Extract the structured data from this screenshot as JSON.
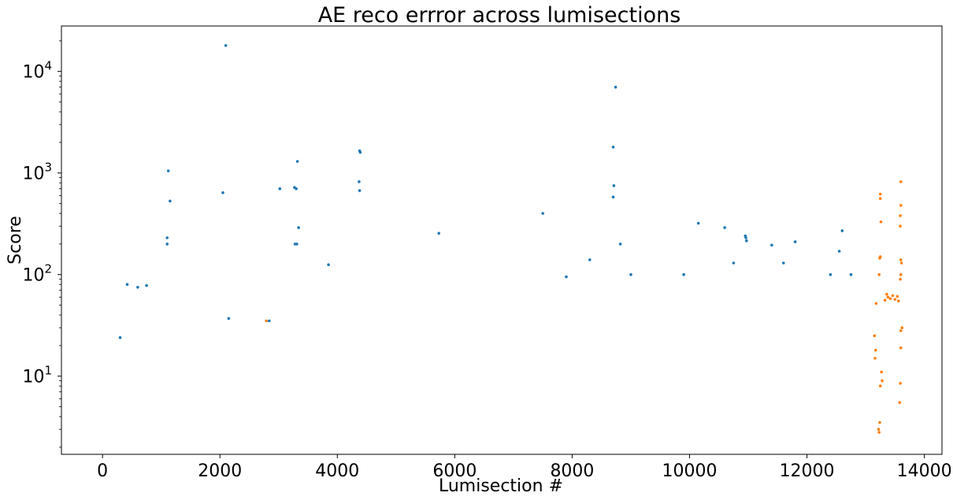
{
  "chart_data": {
    "type": "scatter",
    "title": "AE reco errror across lumisections",
    "xlabel": "Lumisection #",
    "ylabel": "Score",
    "xlim": [
      -700,
      14300
    ],
    "ylim": [
      1.7,
      28000
    ],
    "yscale": "log",
    "grid": false,
    "xticks": [
      0,
      2000,
      4000,
      6000,
      8000,
      10000,
      12000,
      14000
    ],
    "yticks": [
      {
        "value": 10,
        "base": "10",
        "exp": "1"
      },
      {
        "value": 100,
        "base": "10",
        "exp": "2"
      },
      {
        "value": 1000,
        "base": "10",
        "exp": "3"
      },
      {
        "value": 10000,
        "base": "10",
        "exp": "4"
      }
    ],
    "series": [
      {
        "color": "#1f77b4",
        "points": [
          [
            1120,
            1050
          ],
          [
            1150,
            530
          ],
          [
            2050,
            640
          ],
          [
            2100,
            18000
          ],
          [
            2150,
            37
          ],
          [
            3020,
            700
          ],
          [
            3270,
            720
          ],
          [
            3300,
            700
          ],
          [
            3320,
            1300
          ],
          [
            3340,
            290
          ],
          [
            3280,
            200
          ],
          [
            3310,
            200
          ],
          [
            3850,
            125
          ],
          [
            4380,
            1650
          ],
          [
            4390,
            1600
          ],
          [
            4370,
            820
          ],
          [
            4380,
            670
          ],
          [
            5730,
            255
          ],
          [
            7500,
            400
          ],
          [
            8700,
            1800
          ],
          [
            8710,
            750
          ],
          [
            8700,
            580
          ],
          [
            8740,
            7000
          ],
          [
            8820,
            200
          ],
          [
            10150,
            320
          ],
          [
            10600,
            290
          ],
          [
            10950,
            240
          ],
          [
            10960,
            230
          ],
          [
            10970,
            215
          ],
          [
            11400,
            195
          ],
          [
            11800,
            210
          ],
          [
            12600,
            270
          ],
          [
            12550,
            170
          ],
          [
            1100,
            230
          ],
          [
            1100,
            200
          ],
          [
            420,
            80
          ],
          [
            600,
            75
          ],
          [
            750,
            78
          ],
          [
            300,
            24
          ],
          [
            2840,
            35
          ],
          [
            7900,
            95
          ],
          [
            8300,
            140
          ],
          [
            9000,
            100
          ],
          [
            9900,
            100
          ],
          [
            10750,
            130
          ],
          [
            11600,
            130
          ],
          [
            12400,
            100
          ],
          [
            12750,
            100
          ]
        ]
      },
      {
        "color": "#ff7f0e",
        "points": [
          [
            2790,
            35
          ],
          [
            13250,
            620
          ],
          [
            13250,
            560
          ],
          [
            13600,
            820
          ],
          [
            13600,
            480
          ],
          [
            13590,
            380
          ],
          [
            13590,
            300
          ],
          [
            13260,
            330
          ],
          [
            13250,
            150
          ],
          [
            13240,
            145
          ],
          [
            13600,
            140
          ],
          [
            13610,
            130
          ],
          [
            13230,
            100
          ],
          [
            13600,
            100
          ],
          [
            13590,
            90
          ],
          [
            13180,
            52
          ],
          [
            13620,
            30
          ],
          [
            13600,
            28
          ],
          [
            13600,
            19
          ],
          [
            13270,
            11
          ],
          [
            13280,
            9
          ],
          [
            13250,
            8
          ],
          [
            13170,
            18
          ],
          [
            13160,
            15
          ],
          [
            13150,
            25
          ],
          [
            13230,
            2.8
          ],
          [
            13220,
            3
          ],
          [
            13240,
            3.5
          ],
          [
            13590,
            8.5
          ],
          [
            13580,
            5.5
          ],
          [
            13380,
            60
          ],
          [
            13420,
            58
          ],
          [
            13460,
            62
          ],
          [
            13500,
            57
          ],
          [
            13540,
            61
          ],
          [
            13560,
            55
          ],
          [
            13330,
            56
          ],
          [
            13360,
            64
          ]
        ]
      }
    ]
  }
}
